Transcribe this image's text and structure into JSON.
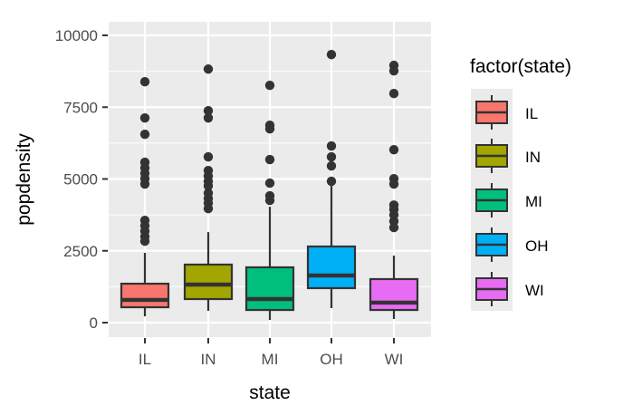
{
  "chart_data": {
    "type": "boxplot",
    "title": "",
    "xlabel": "state",
    "ylabel": "popdensity",
    "categories": [
      "IL",
      "IN",
      "MI",
      "OH",
      "WI"
    ],
    "ylim": [
      -500,
      10500
    ],
    "yticks": [
      0,
      2500,
      5000,
      7500,
      10000
    ],
    "ytick_labels": [
      "0",
      "2500",
      "5000",
      "7500",
      "10000"
    ],
    "grid": true,
    "legend": {
      "title": "factor(state)",
      "position": "right",
      "entries": [
        "IL",
        "IN",
        "MI",
        "OH",
        "WI"
      ]
    },
    "series": [
      {
        "name": "IL",
        "color": "#F8766D",
        "whisker_low": 220,
        "q1": 535,
        "median": 790,
        "q3": 1355,
        "whisker_high": 2430,
        "outliers": [
          8385,
          7125,
          6555,
          5580,
          5390,
          5200,
          5010,
          4825,
          3560,
          3375,
          3185,
          2995,
          2835
        ]
      },
      {
        "name": "IN",
        "color": "#A3A500",
        "whisker_low": 410,
        "q1": 820,
        "median": 1325,
        "q3": 2020,
        "whisker_high": 3150,
        "outliers": [
          8825,
          7375,
          7125,
          5770,
          5295,
          5105,
          4920,
          4760,
          4510,
          4320,
          4160,
          3970
        ]
      },
      {
        "name": "MI",
        "color": "#00BF7D",
        "whisker_low": 95,
        "q1": 440,
        "median": 820,
        "q3": 1925,
        "whisker_high": 4035,
        "outliers": [
          8260,
          6870,
          6745,
          5675,
          4855,
          4415,
          4255
        ]
      },
      {
        "name": "OH",
        "color": "#00B0F6",
        "whisker_low": 505,
        "q1": 1200,
        "median": 1640,
        "q3": 2650,
        "whisker_high": 4760,
        "outliers": [
          9330,
          6150,
          5770,
          5455,
          4920
        ]
      },
      {
        "name": "WI",
        "color": "#E76BF3",
        "whisker_low": 125,
        "q1": 440,
        "median": 695,
        "q3": 1515,
        "whisker_high": 2335,
        "outliers": [
          8955,
          8765,
          7975,
          6020,
          5010,
          4825,
          4090,
          3935,
          3750,
          3530,
          3310
        ]
      }
    ]
  },
  "colors": {
    "panel_background": "#EBEBEB",
    "grid": "#FFFFFF",
    "outline": "#333333",
    "tick_text": "#4D4D4D"
  }
}
